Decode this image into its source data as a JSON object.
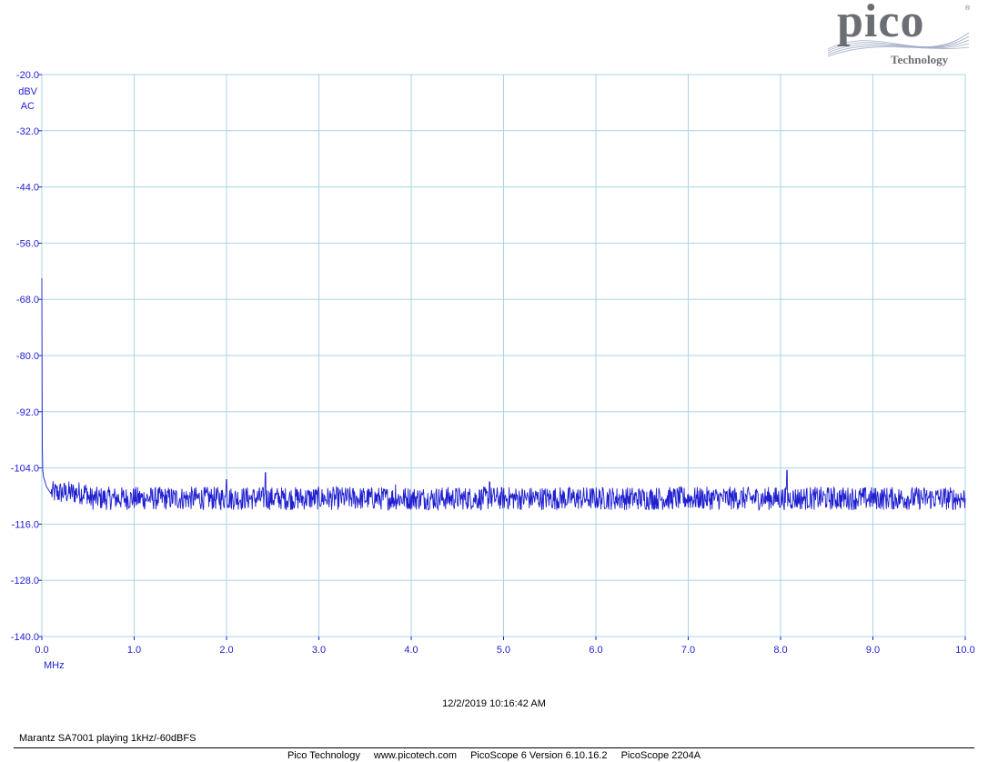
{
  "chart_data": {
    "type": "line",
    "title": "",
    "xlabel": "MHz",
    "ylabel_unit": "dBV",
    "ylabel_coupling": "AC",
    "xlim": [
      0.0,
      10.0
    ],
    "ylim": [
      -140.0,
      -20.0
    ],
    "x_ticks": [
      "0.0",
      "1.0",
      "2.0",
      "3.0",
      "4.0",
      "5.0",
      "6.0",
      "7.0",
      "8.0",
      "9.0",
      "10.0"
    ],
    "y_ticks": [
      "-20.0",
      "-32.0",
      "-44.0",
      "-56.0",
      "-68.0",
      "-80.0",
      "-92.0",
      "-104.0",
      "-116.0",
      "-128.0",
      "-140.0"
    ],
    "grid": true,
    "series": [
      {
        "color": "#1f1fd0",
        "noise_floor_db": -110.5,
        "noise_amplitude_db": 2.5,
        "points": [
          {
            "x": 0.0,
            "y": -63.5
          },
          {
            "x": 0.002,
            "y": -80.0
          },
          {
            "x": 0.005,
            "y": -99.0
          },
          {
            "x": 0.01,
            "y": -104.5
          },
          {
            "x": 0.02,
            "y": -106.0
          },
          {
            "x": 0.05,
            "y": -108.0
          },
          {
            "x": 0.1,
            "y": -109.5
          },
          {
            "x": 2.0,
            "y": -106.5
          },
          {
            "x": 2.42,
            "y": -105.0
          },
          {
            "x": 3.83,
            "y": -107.5
          },
          {
            "x": 4.85,
            "y": -107.0
          },
          {
            "x": 8.07,
            "y": -104.5
          },
          {
            "x": 10.0,
            "y": -110.5
          }
        ]
      }
    ]
  },
  "timestamp": "12/2/2019 10:16:42 AM",
  "caption": "Marantz SA7001 playing 1kHz/-60dBFS",
  "footer": {
    "company": "Pico Technology",
    "website": "www.picotech.com",
    "software": "PicoScope 6 Version 6.10.16.2",
    "device": "PicoScope 2204A"
  },
  "logo": {
    "name": "pico",
    "sub": "Technology",
    "reg": "®"
  },
  "colors": {
    "trace": "#1f1fd0",
    "grid": "#a8d4e6",
    "labels": "#1f1fd0"
  }
}
